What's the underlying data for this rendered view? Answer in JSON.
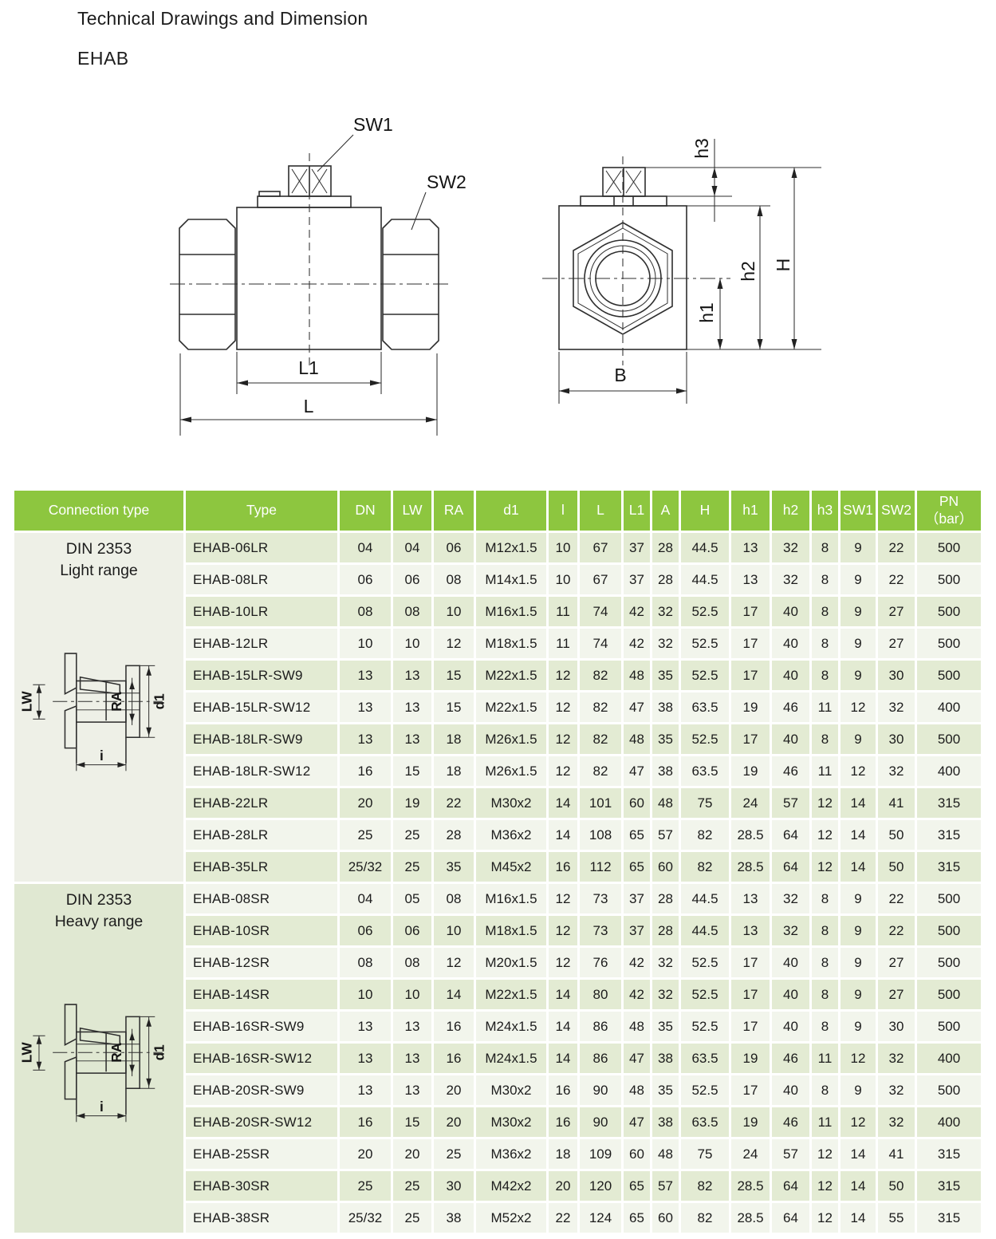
{
  "page": {
    "title": "Technical Drawings and Dimension",
    "subtitle": "EHAB"
  },
  "front_view": {
    "sw1": "SW1",
    "sw2": "SW2",
    "l1": "L1",
    "l": "L"
  },
  "side_view": {
    "h3": "h3",
    "h2": "h2",
    "h1": "h1",
    "h": "H",
    "b": "B"
  },
  "connection_view": {
    "lw": "LW",
    "ra": "RA",
    "d1": "d1",
    "i": "i"
  },
  "colors": {
    "header_green": "#8dc63f",
    "row_green": "#e3ebd3",
    "row_white": "#f2f5ec",
    "section_light": "#eef0e7",
    "section_heavy": "#e0e8d2"
  },
  "table": {
    "columns": [
      "Connection type",
      "Type",
      "DN",
      "LW",
      "RA",
      "d1",
      "l",
      "L",
      "L1",
      "A",
      "H",
      "h1",
      "h2",
      "h3",
      "SW1",
      "SW2",
      "PN\n（bar）"
    ],
    "sections": [
      {
        "connection_type": "DIN 2353\nLight range",
        "rows": [
          {
            "type": "EHAB-06LR",
            "values": [
              "04",
              "04",
              "06",
              "M12x1.5",
              "10",
              "67",
              "37",
              "28",
              "44.5",
              "13",
              "32",
              "8",
              "9",
              "22",
              "500"
            ]
          },
          {
            "type": "EHAB-08LR",
            "values": [
              "06",
              "06",
              "08",
              "M14x1.5",
              "10",
              "67",
              "37",
              "28",
              "44.5",
              "13",
              "32",
              "8",
              "9",
              "22",
              "500"
            ]
          },
          {
            "type": "EHAB-10LR",
            "values": [
              "08",
              "08",
              "10",
              "M16x1.5",
              "11",
              "74",
              "42",
              "32",
              "52.5",
              "17",
              "40",
              "8",
              "9",
              "27",
              "500"
            ]
          },
          {
            "type": "EHAB-12LR",
            "values": [
              "10",
              "10",
              "12",
              "M18x1.5",
              "11",
              "74",
              "42",
              "32",
              "52.5",
              "17",
              "40",
              "8",
              "9",
              "27",
              "500"
            ]
          },
          {
            "type": "EHAB-15LR-SW9",
            "values": [
              "13",
              "13",
              "15",
              "M22x1.5",
              "12",
              "82",
              "48",
              "35",
              "52.5",
              "17",
              "40",
              "8",
              "9",
              "30",
              "500"
            ]
          },
          {
            "type": "EHAB-15LR-SW12",
            "values": [
              "13",
              "13",
              "15",
              "M22x1.5",
              "12",
              "82",
              "47",
              "38",
              "63.5",
              "19",
              "46",
              "11",
              "12",
              "32",
              "400"
            ]
          },
          {
            "type": "EHAB-18LR-SW9",
            "values": [
              "13",
              "13",
              "18",
              "M26x1.5",
              "12",
              "82",
              "48",
              "35",
              "52.5",
              "17",
              "40",
              "8",
              "9",
              "30",
              "500"
            ]
          },
          {
            "type": "EHAB-18LR-SW12",
            "values": [
              "16",
              "15",
              "18",
              "M26x1.5",
              "12",
              "82",
              "47",
              "38",
              "63.5",
              "19",
              "46",
              "11",
              "12",
              "32",
              "400"
            ]
          },
          {
            "type": "EHAB-22LR",
            "values": [
              "20",
              "19",
              "22",
              "M30x2",
              "14",
              "101",
              "60",
              "48",
              "75",
              "24",
              "57",
              "12",
              "14",
              "41",
              "315"
            ]
          },
          {
            "type": "EHAB-28LR",
            "values": [
              "25",
              "25",
              "28",
              "M36x2",
              "14",
              "108",
              "65",
              "57",
              "82",
              "28.5",
              "64",
              "12",
              "14",
              "50",
              "315"
            ]
          },
          {
            "type": "EHAB-35LR",
            "values": [
              "25/32",
              "25",
              "35",
              "M45x2",
              "16",
              "112",
              "65",
              "60",
              "82",
              "28.5",
              "64",
              "12",
              "14",
              "50",
              "315"
            ]
          }
        ]
      },
      {
        "connection_type": "DIN 2353\nHeavy range",
        "rows": [
          {
            "type": "EHAB-08SR",
            "values": [
              "04",
              "05",
              "08",
              "M16x1.5",
              "12",
              "73",
              "37",
              "28",
              "44.5",
              "13",
              "32",
              "8",
              "9",
              "22",
              "500"
            ]
          },
          {
            "type": "EHAB-10SR",
            "values": [
              "06",
              "06",
              "10",
              "M18x1.5",
              "12",
              "73",
              "37",
              "28",
              "44.5",
              "13",
              "32",
              "8",
              "9",
              "22",
              "500"
            ]
          },
          {
            "type": "EHAB-12SR",
            "values": [
              "08",
              "08",
              "12",
              "M20x1.5",
              "12",
              "76",
              "42",
              "32",
              "52.5",
              "17",
              "40",
              "8",
              "9",
              "27",
              "500"
            ]
          },
          {
            "type": "EHAB-14SR",
            "values": [
              "10",
              "10",
              "14",
              "M22x1.5",
              "14",
              "80",
              "42",
              "32",
              "52.5",
              "17",
              "40",
              "8",
              "9",
              "27",
              "500"
            ]
          },
          {
            "type": "EHAB-16SR-SW9",
            "values": [
              "13",
              "13",
              "16",
              "M24x1.5",
              "14",
              "86",
              "48",
              "35",
              "52.5",
              "17",
              "40",
              "8",
              "9",
              "30",
              "500"
            ]
          },
          {
            "type": "EHAB-16SR-SW12",
            "values": [
              "13",
              "13",
              "16",
              "M24x1.5",
              "14",
              "86",
              "47",
              "38",
              "63.5",
              "19",
              "46",
              "11",
              "12",
              "32",
              "400"
            ]
          },
          {
            "type": "EHAB-20SR-SW9",
            "values": [
              "13",
              "13",
              "20",
              "M30x2",
              "16",
              "90",
              "48",
              "35",
              "52.5",
              "17",
              "40",
              "8",
              "9",
              "32",
              "500"
            ]
          },
          {
            "type": "EHAB-20SR-SW12",
            "values": [
              "16",
              "15",
              "20",
              "M30x2",
              "16",
              "90",
              "47",
              "38",
              "63.5",
              "19",
              "46",
              "11",
              "12",
              "32",
              "400"
            ]
          },
          {
            "type": "EHAB-25SR",
            "values": [
              "20",
              "20",
              "25",
              "M36x2",
              "18",
              "109",
              "60",
              "48",
              "75",
              "24",
              "57",
              "12",
              "14",
              "41",
              "315"
            ]
          },
          {
            "type": "EHAB-30SR",
            "values": [
              "25",
              "25",
              "30",
              "M42x2",
              "20",
              "120",
              "65",
              "57",
              "82",
              "28.5",
              "64",
              "12",
              "14",
              "50",
              "315"
            ]
          },
          {
            "type": "EHAB-38SR",
            "values": [
              "25/32",
              "25",
              "38",
              "M52x2",
              "22",
              "124",
              "65",
              "60",
              "82",
              "28.5",
              "64",
              "12",
              "14",
              "55",
              "315"
            ]
          }
        ]
      }
    ]
  }
}
